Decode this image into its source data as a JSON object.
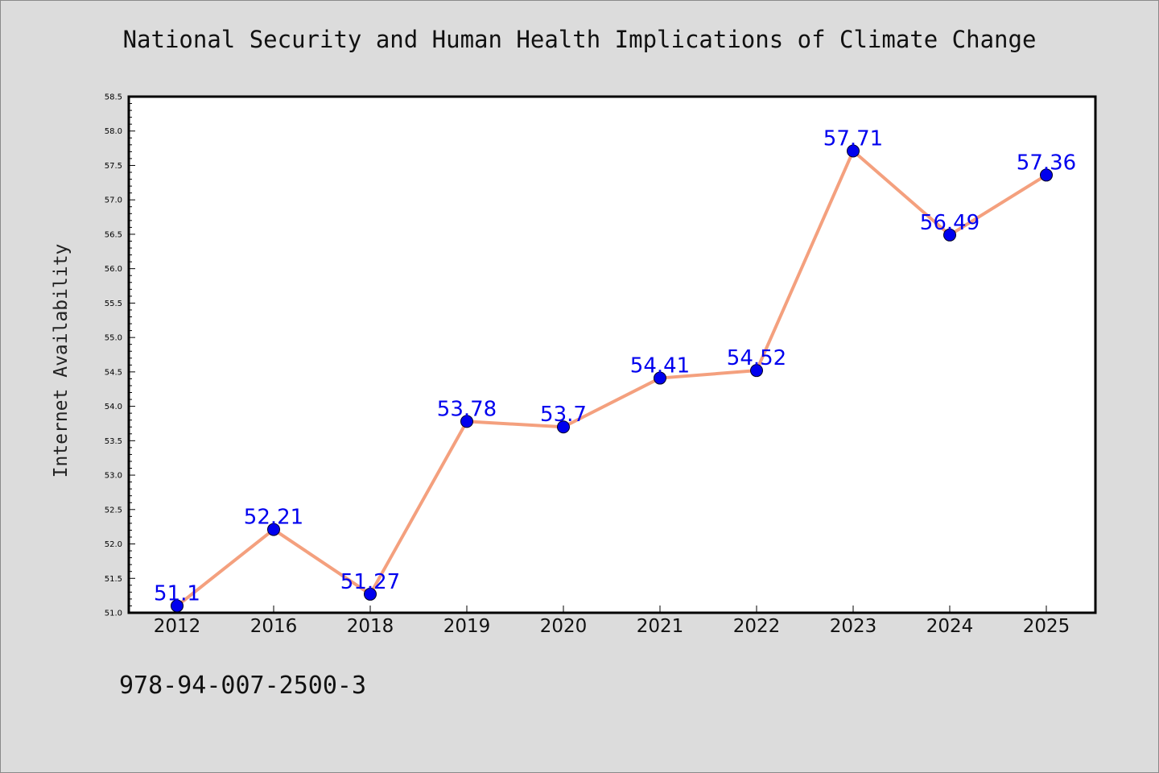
{
  "page": {
    "title": "National Security and Human Health Implications of Climate Change",
    "isbn": "978-94-007-2500-3"
  },
  "chart_data": {
    "type": "line",
    "title": "National Security and Human Health Implications of Climate Change",
    "xlabel": "",
    "ylabel": "Internet Availability",
    "categories": [
      "2012",
      "2016",
      "2018",
      "2019",
      "2020",
      "2021",
      "2022",
      "2023",
      "2024",
      "2025"
    ],
    "series": [
      {
        "values": [
          51.1,
          52.21,
          51.27,
          53.78,
          53.7,
          54.41,
          54.52,
          57.71,
          56.49,
          57.36
        ],
        "labels": [
          "51.1",
          "52.21",
          "51.27",
          "53.78",
          "53.7",
          "54.41",
          "54.52",
          "57.71",
          "56.49",
          "57.36"
        ]
      }
    ],
    "ylim": [
      51.0,
      58.5
    ],
    "yticks": [
      "51.0",
      "51.5",
      "52.0",
      "52.5",
      "53.0",
      "53.5",
      "54.0",
      "54.5",
      "55.0",
      "55.5",
      "56.0",
      "56.5",
      "57.0",
      "57.5",
      "58.0",
      "58.5"
    ],
    "grid": false,
    "legend": "none",
    "colors": {
      "line": "#f4a07e",
      "marker": "#0000ee",
      "labels": "#0000ee",
      "background": "#dcdcdc",
      "plot_background": "#ffffff"
    }
  }
}
